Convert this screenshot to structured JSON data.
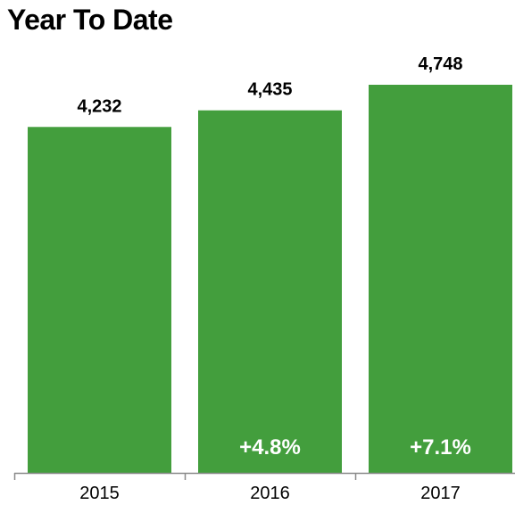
{
  "chart_data": {
    "type": "bar",
    "title": "Year To Date",
    "categories": [
      "2015",
      "2016",
      "2017"
    ],
    "values": [
      4232,
      4435,
      4748
    ],
    "value_labels": [
      "4,232",
      "4,435",
      "4,748"
    ],
    "change_labels": [
      "",
      "+4.8%",
      "+7.1%"
    ],
    "ylim": [
      0,
      5000
    ],
    "grid": false,
    "legend": "none",
    "xlabel": "",
    "ylabel": "",
    "bar_color": "#439e3d",
    "axis_color": "#8a8a8a"
  }
}
